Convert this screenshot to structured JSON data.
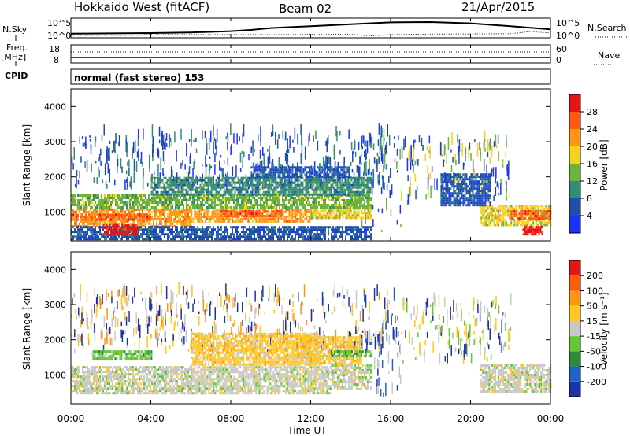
{
  "header": {
    "station": "Hokkaido West (fitACF)",
    "beam": "Beam 02",
    "date": "21/Apr/2015"
  },
  "top_panels": {
    "nsky_label": "N.Sky",
    "nsky_top_tick": "10^5",
    "nsky_bottom_tick": "10^0",
    "nsearch_label": "N.Search",
    "nsearch_top_tick": "10^5",
    "nsearch_bottom_tick": "10^0",
    "freq_label": "Freq.",
    "freq_unit": "[MHz]",
    "freq_top_tick": "18",
    "freq_bottom_tick": "8",
    "nave_label": "Nave",
    "nave_top_tick": "60",
    "nave_bottom_tick": "0",
    "cpid_label": "CPID",
    "cpid_value": "normal (fast stereo) 153"
  },
  "axes": {
    "y_label": "Slant Range [km]",
    "x_label": "Time UT",
    "y_ticks": [
      "1000",
      "2000",
      "3000",
      "4000"
    ],
    "x_ticks": [
      "00:00",
      "04:00",
      "08:00",
      "12:00",
      "16:00",
      "20:00",
      "00:00"
    ]
  },
  "power_colorbar": {
    "label": "Power [dB]",
    "ticks": [
      "4",
      "8",
      "12",
      "16",
      "20",
      "24",
      "28"
    ],
    "colors": [
      "#1e32ff",
      "#1e50aa",
      "#328c78",
      "#6eb43c",
      "#f5d21e",
      "#ff9614",
      "#ff5a14",
      "#e61414"
    ]
  },
  "velocity_colorbar": {
    "label": "Velocity [m s⁻¹]",
    "ticks": [
      "200",
      "100",
      "50",
      "15",
      "-15",
      "-50",
      "-100",
      "-200"
    ],
    "colors": [
      "#1e32aa",
      "#1e64c8",
      "#2d8c3c",
      "#64c832",
      "#c8c8c8",
      "#ffc81e",
      "#ff9614",
      "#ff5a0a",
      "#e61414"
    ]
  },
  "chart_data": {
    "type": "heatmap",
    "x_range_hours": [
      0,
      24
    ],
    "y_range_km": [
      180,
      4500
    ],
    "nsky_log_range": [
      0,
      5
    ],
    "nsky": [
      [
        0,
        0.8
      ],
      [
        2,
        0.9
      ],
      [
        4,
        1.0
      ],
      [
        6,
        1.2
      ],
      [
        8,
        1.6
      ],
      [
        9,
        2.0
      ],
      [
        10,
        2.6
      ],
      [
        12,
        3.2
      ],
      [
        14,
        3.8
      ],
      [
        16,
        4.4
      ],
      [
        18,
        4.5
      ],
      [
        20,
        4.1
      ],
      [
        22,
        3.2
      ],
      [
        23,
        2.7
      ],
      [
        24,
        2.2
      ]
    ],
    "nsearch": [
      [
        0,
        0.3
      ],
      [
        3.5,
        0.3
      ],
      [
        3.6,
        0.5
      ],
      [
        10,
        0.5
      ],
      [
        14,
        0.6
      ],
      [
        15,
        0.1
      ],
      [
        16,
        0.5
      ],
      [
        17,
        0.6
      ],
      [
        19,
        0.7
      ],
      [
        22,
        0.8
      ],
      [
        23,
        1.5
      ],
      [
        24,
        1.0
      ]
    ],
    "power_blobs": [
      {
        "t0": 0,
        "t1": 6.0,
        "r0": 600,
        "r1": 1100,
        "level": 5
      },
      {
        "t0": 0,
        "t1": 4.0,
        "r0": 750,
        "r1": 950,
        "level": 6
      },
      {
        "t0": 6.0,
        "t1": 12.0,
        "r0": 700,
        "r1": 1100,
        "level": 5
      },
      {
        "t0": 7.5,
        "t1": 10.5,
        "r0": 900,
        "r1": 1050,
        "level": 6
      },
      {
        "t0": 12.0,
        "t1": 15.0,
        "r0": 800,
        "r1": 1200,
        "level": 4
      },
      {
        "t0": 0,
        "t1": 15.0,
        "r0": 1100,
        "r1": 1500,
        "level": 3
      },
      {
        "t0": 4.0,
        "t1": 15.0,
        "r0": 1500,
        "r1": 2000,
        "level": 2
      },
      {
        "t0": 9.0,
        "t1": 14.0,
        "r0": 2000,
        "r1": 2300,
        "level": 1
      },
      {
        "t0": 0,
        "t1": 15.0,
        "r0": 200,
        "r1": 600,
        "level": 1
      },
      {
        "t0": 1.6,
        "t1": 3.4,
        "r0": 320,
        "r1": 650,
        "level": 7
      },
      {
        "t0": 20.5,
        "t1": 24.0,
        "r0": 600,
        "r1": 1200,
        "level": 4
      },
      {
        "t0": 22.0,
        "t1": 24.0,
        "r0": 800,
        "r1": 1050,
        "level": 6
      },
      {
        "t0": 18.5,
        "t1": 21.0,
        "r0": 1200,
        "r1": 2100,
        "level": 1
      },
      {
        "t0": 22.6,
        "t1": 23.6,
        "r0": 350,
        "r1": 600,
        "level": 7
      }
    ],
    "power_specks": [
      {
        "t0": 0,
        "t1": 16.0,
        "r0": 1600,
        "r1": 3200,
        "levels": [
          0,
          1,
          2
        ]
      },
      {
        "t0": 14.5,
        "t1": 16.5,
        "r0": 300,
        "r1": 3200,
        "levels": [
          0,
          1,
          3
        ]
      },
      {
        "t0": 16.5,
        "t1": 22.0,
        "r0": 1200,
        "r1": 3000,
        "levels": [
          0,
          1,
          3,
          4
        ]
      }
    ],
    "velocity_blobs": [
      {
        "t0": 0,
        "t1": 6.0,
        "r0": 500,
        "r1": 1250,
        "level": 4
      },
      {
        "t0": 6.0,
        "t1": 13.0,
        "r0": 500,
        "r1": 1250,
        "level": 4
      },
      {
        "t0": 13.0,
        "t1": 15.0,
        "r0": 600,
        "r1": 1300,
        "level": 4
      },
      {
        "t0": 20.5,
        "t1": 24.0,
        "r0": 500,
        "r1": 1300,
        "level": 4
      },
      {
        "t0": 6.0,
        "t1": 12.5,
        "r0": 1300,
        "r1": 2200,
        "level": 5
      },
      {
        "t0": 11.5,
        "t1": 14.5,
        "r0": 1300,
        "r1": 2100,
        "level": 5
      },
      {
        "t0": 1.0,
        "t1": 4.0,
        "r0": 1450,
        "r1": 1700,
        "level": 3
      },
      {
        "t0": 13.0,
        "t1": 15.0,
        "r0": 1500,
        "r1": 1700,
        "level": 3
      }
    ],
    "velocity_specks": [
      {
        "t0": 0,
        "t1": 16.0,
        "r0": 1600,
        "r1": 3300,
        "levels": [
          0,
          4,
          5,
          6
        ]
      },
      {
        "t0": 14.5,
        "t1": 16.5,
        "r0": 300,
        "r1": 3200,
        "levels": [
          0,
          1,
          4
        ]
      },
      {
        "t0": 16.5,
        "t1": 22.0,
        "r0": 1300,
        "r1": 3000,
        "levels": [
          0,
          3,
          4,
          5
        ]
      }
    ]
  }
}
